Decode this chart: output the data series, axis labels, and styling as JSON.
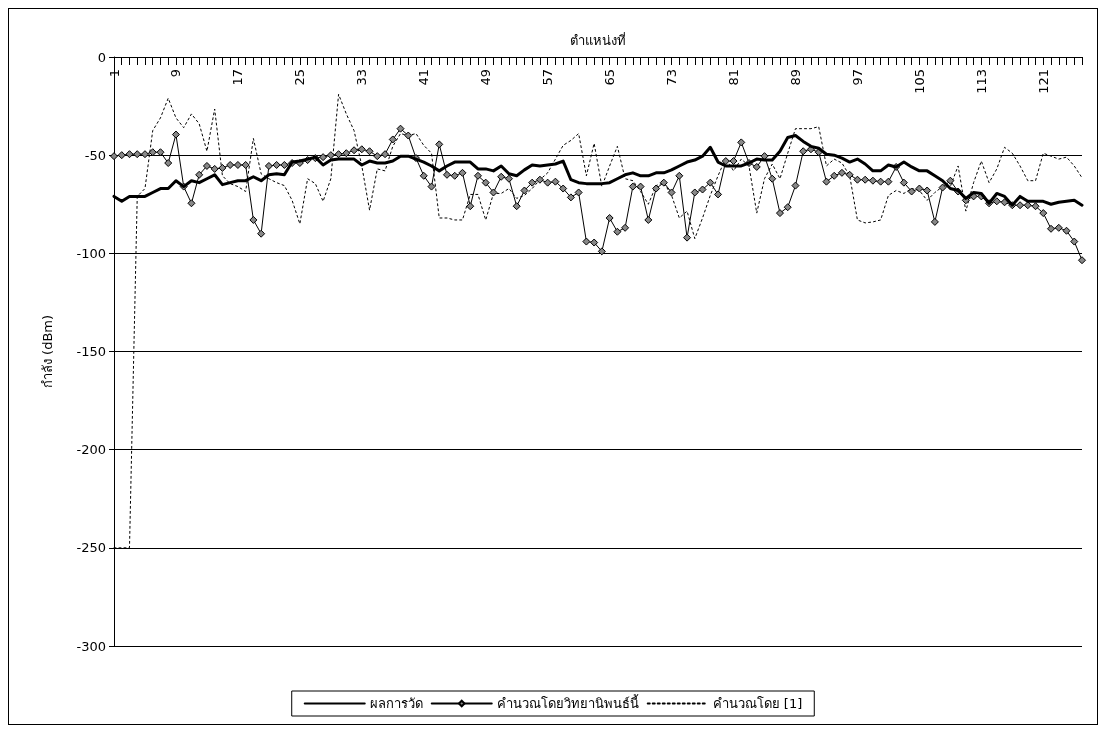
{
  "chart_data": {
    "type": "line",
    "xlabel": "ตำแหน่งที่",
    "ylabel": "กำลัง (dBm)",
    "categories": [
      "1",
      null,
      null,
      null,
      null,
      null,
      null,
      null,
      "9",
      null,
      null,
      null,
      null,
      null,
      null,
      null,
      "17",
      null,
      null,
      null,
      null,
      null,
      null,
      null,
      "25",
      null,
      null,
      null,
      null,
      null,
      null,
      null,
      "33",
      null,
      null,
      null,
      null,
      null,
      null,
      null,
      "41",
      null,
      null,
      null,
      null,
      null,
      null,
      null,
      "49",
      null,
      null,
      null,
      null,
      null,
      null,
      null,
      "57",
      null,
      null,
      null,
      null,
      null,
      null,
      null,
      "65",
      null,
      null,
      null,
      null,
      null,
      null,
      null,
      "73",
      null,
      null,
      null,
      null,
      null,
      null,
      null,
      "81",
      null,
      null,
      null,
      null,
      null,
      null,
      null,
      "89",
      null,
      null,
      null,
      null,
      null,
      null,
      null,
      "97",
      null,
      null,
      null,
      null,
      null,
      null,
      null,
      "105",
      null,
      null,
      null,
      null,
      null,
      null,
      null,
      "113",
      null,
      null,
      null,
      null,
      null,
      null,
      null,
      "121",
      null,
      null,
      null,
      null,
      null
    ],
    "series": [
      {
        "name": "ผลการวัด",
        "color": "#000000",
        "marker": "none",
        "line_style": "solid",
        "values": [
          -71,
          -73.5,
          -71,
          -71,
          -71,
          -69,
          -67,
          -67,
          -63,
          -66,
          -63,
          -64,
          -62,
          -60,
          -65,
          -64,
          -63,
          -63,
          -61,
          -63,
          -60,
          -59.5,
          -60,
          -53.5,
          -53,
          -52,
          -51,
          -55,
          -52.5,
          -52,
          -52,
          -52,
          -55,
          -53,
          -54,
          -54,
          -53,
          -50.5,
          -50.5,
          -52,
          -53.5,
          -55.5,
          -58,
          -55.5,
          -53.5,
          -53.5,
          -53.5,
          -57,
          -57,
          -58,
          -55.5,
          -59.5,
          -60.5,
          -57.5,
          -55,
          -55.5,
          -55,
          -54.5,
          -53,
          -62.5,
          -64,
          -64.5,
          -64.5,
          -64.5,
          -64,
          -62,
          -60,
          -59,
          -60.5,
          -60.5,
          -59,
          -59,
          -57.5,
          -55.5,
          -53.5,
          -52.5,
          -50.5,
          -46,
          -53.5,
          -55.5,
          -55.5,
          -55.5,
          -54,
          -52,
          -52.5,
          -52.5,
          -48,
          -41,
          -40,
          -43,
          -45.5,
          -46.5,
          -49.5,
          -50,
          -51.5,
          -53.5,
          -52,
          -54.5,
          -58,
          -58,
          -55,
          -56,
          -53.5,
          -56,
          -58,
          -58,
          -60.5,
          -63,
          -67,
          -68,
          -72,
          -69,
          -69.5,
          -74.5,
          -69.5,
          -71,
          -75.5,
          -71,
          -73.5,
          -73.5,
          -73.5,
          -75,
          -74,
          -73.5,
          -73,
          -75.5
        ]
      },
      {
        "name": "คำนวณโดยวิทยานิพนธ์นี้",
        "color": "#000000",
        "marker": "diamond",
        "line_style": "solid",
        "values": [
          -50.5,
          -50,
          -49.5,
          -49.5,
          -49.5,
          -48.5,
          -48.5,
          -54,
          -39.5,
          -66,
          -74.5,
          -60,
          -55.5,
          -57,
          -56.5,
          -55,
          -55,
          -55,
          -83,
          -90,
          -55.5,
          -55,
          -55,
          -54,
          -54,
          -52.5,
          -51.5,
          -51,
          -50,
          -49.5,
          -49,
          -47.5,
          -47,
          -48,
          -50.5,
          -49.5,
          -42,
          -36.5,
          -40,
          -51.5,
          -60.5,
          -66,
          -44.5,
          -60,
          -60.5,
          -59,
          -76,
          -60.5,
          -64,
          -69,
          -61,
          -62,
          -76,
          -68,
          -64,
          -62.5,
          -64,
          -63.5,
          -67,
          -71.5,
          -69,
          -94,
          -94.5,
          -99,
          -82,
          -89,
          -87,
          -66,
          -66,
          -83,
          -67,
          -64,
          -69,
          -60.5,
          -92,
          -69,
          -67.5,
          -64,
          -70,
          -53,
          -53,
          -43.5,
          -54,
          -56,
          -50.5,
          -62,
          -79.5,
          -76.5,
          -65.5,
          -48,
          -47,
          -48.5,
          -63.5,
          -60.5,
          -59,
          -60,
          -62.5,
          -62.5,
          -63,
          -63.5,
          -63.5,
          -56,
          -64,
          -68.5,
          -67,
          -68,
          -84,
          -66.5,
          -63,
          -68.5,
          -73,
          -71,
          -71,
          -74.5,
          -73.5,
          -74,
          -75.5,
          -75.5,
          -75.5,
          -76,
          -79.5,
          -87.5,
          -87,
          -88.5,
          -94,
          -103.5
        ]
      },
      {
        "name": "คำนวณโดย [1]",
        "color": "#000000",
        "marker": "none",
        "line_style": "dotted",
        "values": [
          -250,
          -250,
          -250,
          -71,
          -67,
          -37.5,
          -31,
          -21,
          -31,
          -36,
          -29,
          -34,
          -48,
          -26.5,
          -60.5,
          -64.5,
          -66,
          -68.5,
          -41.5,
          -59.5,
          -62,
          -64,
          -65.5,
          -73,
          -85,
          -62,
          -64.5,
          -73.5,
          -62,
          -19,
          -29,
          -37.5,
          -55.5,
          -78,
          -57,
          -58,
          -45.5,
          -39,
          -40,
          -39,
          -45,
          -49,
          -82,
          -82,
          -83,
          -83,
          -70,
          -70,
          -83,
          -69.5,
          -69.5,
          -67,
          -72,
          -70.5,
          -67,
          -62.5,
          -59,
          -52,
          -45,
          -42.5,
          -39,
          -60.5,
          -44,
          -66,
          -55.5,
          -45.5,
          -62,
          -63,
          -68.5,
          -75,
          -65.5,
          -64,
          -70.5,
          -82,
          -78.5,
          -92.5,
          -82,
          -70.5,
          -60.5,
          -51.5,
          -58,
          -52,
          -55.5,
          -79.5,
          -62,
          -54.5,
          -62,
          -49,
          -36.5,
          -36.5,
          -36.5,
          -35.5,
          -55.5,
          -52,
          -54,
          -60.5,
          -83,
          -84.5,
          -84,
          -83,
          -70.5,
          -68,
          -69.5,
          -67,
          -68,
          -73,
          -69,
          -66,
          -66,
          -55.5,
          -78.5,
          -64,
          -53,
          -64,
          -57,
          -46,
          -49,
          -55.5,
          -63,
          -63,
          -49,
          -50.5,
          -52,
          -51,
          -55.5,
          -61.5
        ]
      }
    ],
    "ylim": [
      -300,
      0
    ],
    "yticks": [
      0,
      -50,
      -100,
      -150,
      -200,
      -250,
      -300
    ],
    "grid": "y",
    "legend": "bottom"
  }
}
